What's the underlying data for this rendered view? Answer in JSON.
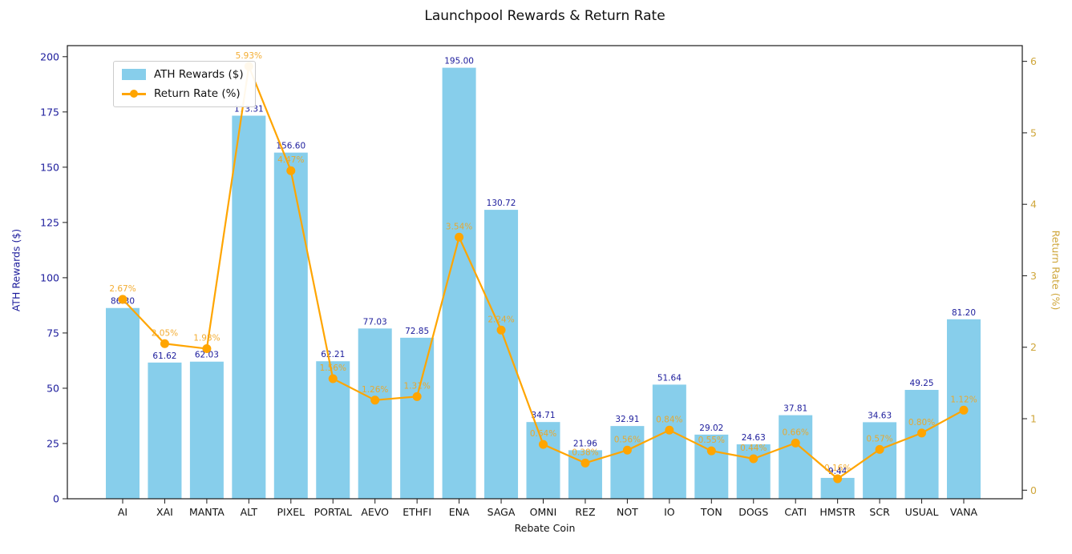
{
  "chart_data": {
    "type": "bar",
    "subtype": "bar+line combo, dual y-axis",
    "title": "Launchpool Rewards & Return Rate",
    "xlabel": "Rebate Coin",
    "ylabel_left": "ATH Rewards ($)",
    "ylabel_right": "Return Rate (%)",
    "categories": [
      "AI",
      "XAI",
      "MANTA",
      "ALT",
      "PIXEL",
      "PORTAL",
      "AEVO",
      "ETHFI",
      "ENA",
      "SAGA",
      "OMNI",
      "REZ",
      "NOT",
      "IO",
      "TON",
      "DOGS",
      "CATI",
      "HMSTR",
      "SCR",
      "USUAL",
      "VANA"
    ],
    "series": [
      {
        "name": "ATH Rewards ($)",
        "type": "bar",
        "axis": "left",
        "color": "#87CEEB",
        "values": [
          86.3,
          61.62,
          62.03,
          173.31,
          156.6,
          62.21,
          77.03,
          72.85,
          195.0,
          130.72,
          34.71,
          21.96,
          32.91,
          51.64,
          29.02,
          24.63,
          37.81,
          9.44,
          34.63,
          49.25,
          81.2
        ]
      },
      {
        "name": "Return Rate (%)",
        "type": "line",
        "axis": "right",
        "color": "#FFA500",
        "values": [
          2.67,
          2.05,
          1.98,
          5.93,
          4.47,
          1.56,
          1.26,
          1.31,
          3.54,
          2.24,
          0.64,
          0.38,
          0.56,
          0.84,
          0.55,
          0.44,
          0.66,
          0.16,
          0.57,
          0.8,
          1.12
        ]
      }
    ],
    "ylim_left": [
      0,
      205
    ],
    "ylim_right": [
      -0.12,
      6.22
    ],
    "yticks_left": [
      0,
      25,
      50,
      75,
      100,
      125,
      150,
      175,
      200
    ],
    "yticks_right": [
      0,
      1,
      2,
      3,
      4,
      5,
      6
    ],
    "legend_position": "upper left",
    "grid": false
  },
  "colors": {
    "bar": "#87CEEB",
    "line": "#FFA500",
    "left_axis_text": "#1c1c9c",
    "right_axis_text": "#cfa63a",
    "value_label": "#1c1c9c",
    "rate_label": "#f2a41c",
    "x_axis_text": "#111111",
    "frame": "#1a1a1a",
    "background": "#ffffff"
  }
}
